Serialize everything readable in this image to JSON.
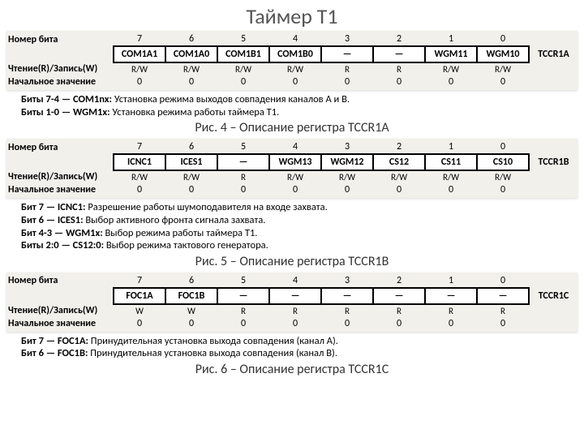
{
  "title": "Таймер Т1",
  "bit_numbers": [
    "7",
    "6",
    "5",
    "4",
    "3",
    "2",
    "1",
    "0"
  ],
  "row_labels": {
    "bit_number": "Номер бита",
    "rw": "Чтение(R)/Запись(W)",
    "init": "Начальное значение"
  },
  "regs": [
    {
      "name": "TCCR1A",
      "bits": [
        "COM1A1",
        "COM1A0",
        "COM1B1",
        "COM1B0",
        "—",
        "—",
        "WGM11",
        "WGM10"
      ],
      "rw": [
        "R/W",
        "R/W",
        "R/W",
        "R/W",
        "R",
        "R",
        "R/W",
        "R/W"
      ],
      "init": [
        "0",
        "0",
        "0",
        "0",
        "0",
        "0",
        "0",
        "0"
      ],
      "caption": "Рис. 4 – Описание регистра TCCR1A",
      "desc": [
        {
          "b": "Биты 7-4 — COM1nx:",
          "t": " Установка режима выходов совпадения каналов A и B."
        },
        {
          "b": "Биты 1-0 — WGM1x:",
          "t": " Установка режима работы таймера T1."
        }
      ]
    },
    {
      "name": "TCCR1B",
      "bits": [
        "ICNC1",
        "ICES1",
        "—",
        "WGM13",
        "WGM12",
        "CS12",
        "CS11",
        "CS10"
      ],
      "rw": [
        "R/W",
        "R/W",
        "R",
        "R/W",
        "R/W",
        "R/W",
        "R/W",
        "R/W"
      ],
      "init": [
        "0",
        "0",
        "0",
        "0",
        "0",
        "0",
        "0",
        "0"
      ],
      "caption": "Рис. 5 – Описание регистра TCCR1B",
      "desc": [
        {
          "b": "Бит 7 — ICNC1:",
          "t": " Разрешение работы шумоподавителя на входе захвата."
        },
        {
          "b": "Бит 6 — ICES1:",
          "t": " Выбор активного фронта сигнала захвата."
        },
        {
          "b": "Бит 4-3 — WGM1x:",
          "t": " Выбор режима работы таймера T1."
        },
        {
          "b": "Биты 2:0 — CS12:0:",
          "t": " Выбор режима тактового генератора."
        }
      ]
    },
    {
      "name": "TCCR1C",
      "bits": [
        "FOC1A",
        "FOC1B",
        "—",
        "—",
        "—",
        "—",
        "—",
        "—"
      ],
      "rw": [
        "W",
        "W",
        "R",
        "R",
        "R",
        "R",
        "R",
        "R"
      ],
      "init": [
        "0",
        "0",
        "0",
        "0",
        "0",
        "0",
        "0",
        "0"
      ],
      "caption": "Рис. 6 – Описание регистра TCCR1C",
      "desc": [
        {
          "b": "Бит 7 — FOC1A:",
          "t": " Принудительная установка выхода совпадения (канал A)."
        },
        {
          "b": "Бит 6 — FOC1B:",
          "t": " Принудительная установка выхода совпадения (канал B)."
        }
      ]
    }
  ]
}
